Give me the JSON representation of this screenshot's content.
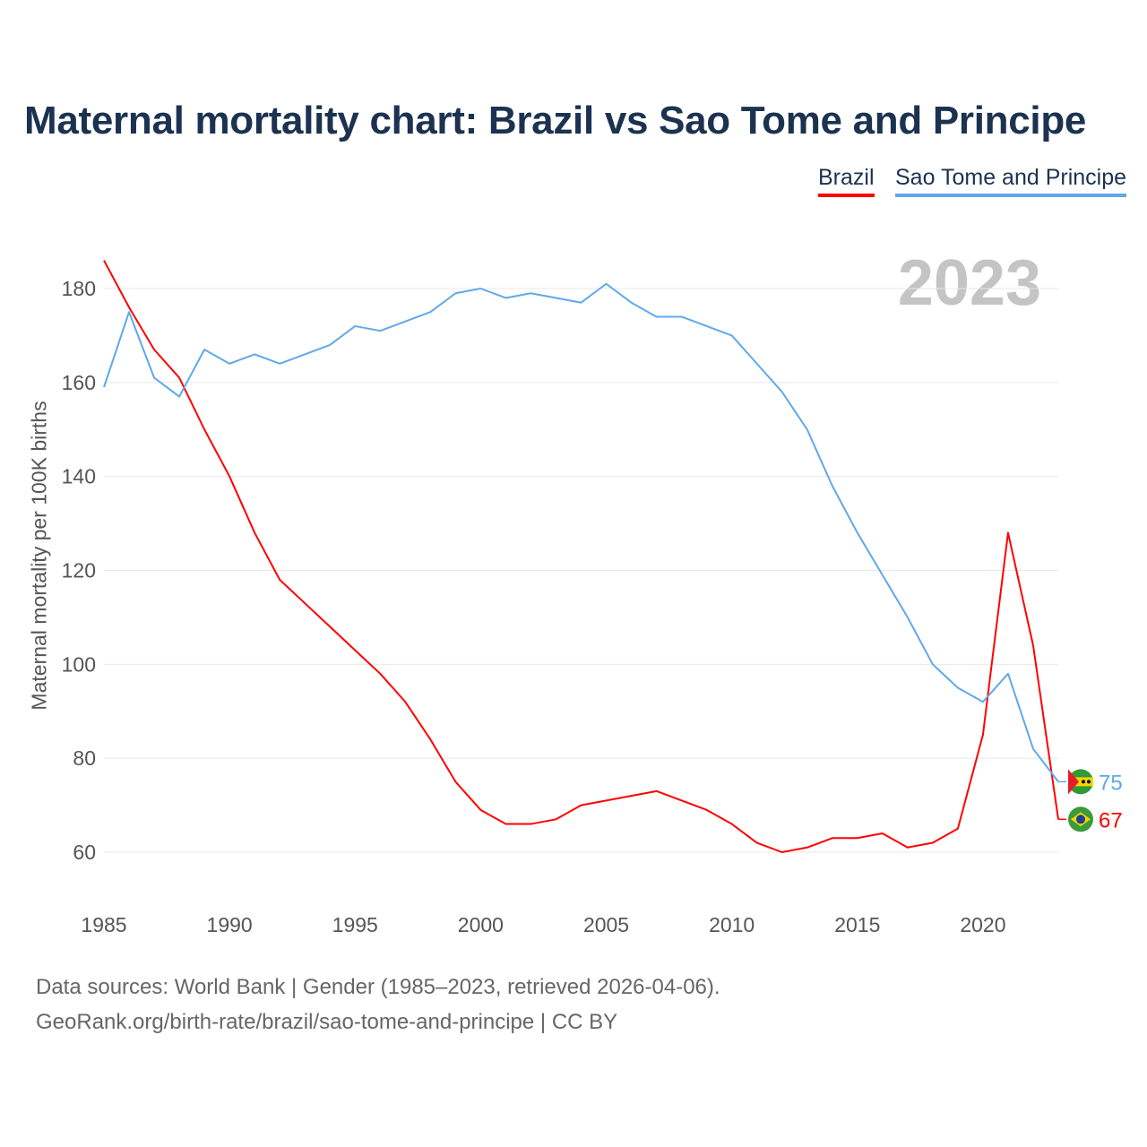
{
  "title": "Maternal mortality chart: Brazil vs Sao Tome and Principe",
  "year_label": "2023",
  "source_line1": "Data sources: World Bank | Gender (1985–2023, retrieved 2026-04-06).",
  "source_line2": "GeoRank.org/birth-rate/brazil/sao-tome-and-principe | CC BY",
  "chart_data": {
    "type": "line",
    "title": "Maternal mortality chart: Brazil vs Sao Tome and Principe",
    "xlabel": "",
    "ylabel": "Maternal mortality per 100K births",
    "xlim": [
      1985,
      2023
    ],
    "ylim": [
      50.5,
      186
    ],
    "xticks": [
      1985,
      1990,
      1995,
      2000,
      2005,
      2010,
      2015,
      2020
    ],
    "yticks": [
      60,
      80,
      100,
      120,
      140,
      160,
      180
    ],
    "grid": true,
    "legend_placement": "top-right",
    "x": [
      1985,
      1986,
      1987,
      1988,
      1989,
      1990,
      1991,
      1992,
      1993,
      1994,
      1995,
      1996,
      1997,
      1998,
      1999,
      2000,
      2001,
      2002,
      2003,
      2004,
      2005,
      2006,
      2007,
      2008,
      2009,
      2010,
      2011,
      2012,
      2013,
      2014,
      2015,
      2016,
      2017,
      2018,
      2019,
      2020,
      2021,
      2022,
      2023
    ],
    "series": [
      {
        "name": "Brazil",
        "color": "#ff0000",
        "end_label": "67",
        "values": [
          186,
          176,
          167,
          161,
          150,
          140,
          128,
          118,
          113,
          108,
          103,
          98,
          92,
          84,
          75,
          69,
          66,
          66,
          67,
          70,
          71,
          72,
          73,
          71,
          69,
          66,
          62,
          60,
          61,
          63,
          63,
          64,
          61,
          62,
          65,
          85,
          128,
          104,
          67
        ]
      },
      {
        "name": "Sao Tome and Principe",
        "color": "#5fa8ec",
        "end_label": "75",
        "values": [
          159,
          175,
          161,
          157,
          167,
          164,
          166,
          164,
          166,
          168,
          172,
          171,
          173,
          175,
          179,
          180,
          178,
          179,
          178,
          177,
          181,
          177,
          174,
          174,
          172,
          170,
          164,
          158,
          150,
          138,
          128,
          119,
          110,
          100,
          95,
          92,
          98,
          82,
          75
        ]
      }
    ]
  }
}
